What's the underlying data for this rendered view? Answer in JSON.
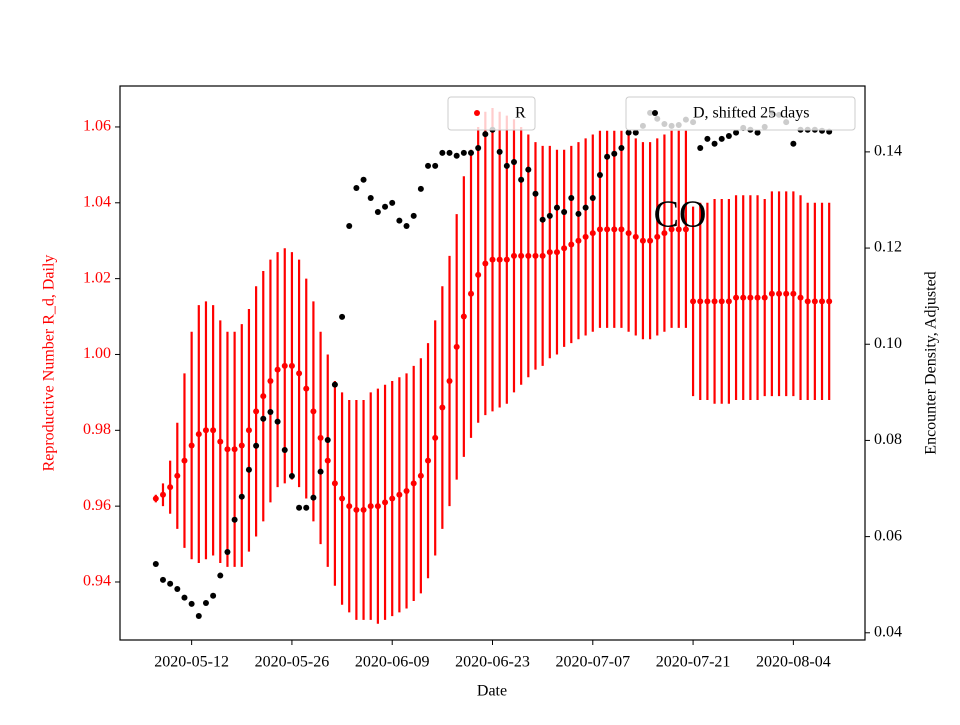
{
  "chart_data": {
    "type": "scatter",
    "x_label": "Date",
    "y_label": "Reproductive Number R_d, Daily",
    "y2_label": "Encounter Density, Adjusted",
    "annotation": "CO",
    "xlim": [
      "2020-05-02",
      "2020-08-14"
    ],
    "xticks": [
      "2020-05-12",
      "2020-05-26",
      "2020-06-09",
      "2020-06-23",
      "2020-07-07",
      "2020-07-21",
      "2020-08-04"
    ],
    "ylim": [
      0.9247,
      1.0708
    ],
    "yticks": [
      0.94,
      0.96,
      0.98,
      {
        "value": 1,
        "label": "1.00"
      },
      1.02,
      1.04,
      1.06
    ],
    "y2lim": [
      0.0385,
      0.1537
    ],
    "y2ticks": [
      0.04,
      0.06,
      0.08,
      {
        "value": 0.1,
        "label": "0.10"
      },
      0.12,
      0.14
    ],
    "x": [
      "2020-05-07",
      "2020-05-08",
      "2020-05-09",
      "2020-05-10",
      "2020-05-11",
      "2020-05-12",
      "2020-05-13",
      "2020-05-14",
      "2020-05-15",
      "2020-05-16",
      "2020-05-17",
      "2020-05-18",
      "2020-05-19",
      "2020-05-20",
      "2020-05-21",
      "2020-05-22",
      "2020-05-23",
      "2020-05-24",
      "2020-05-25",
      "2020-05-26",
      "2020-05-27",
      "2020-05-28",
      "2020-05-29",
      "2020-05-30",
      "2020-05-31",
      "2020-06-01",
      "2020-06-02",
      "2020-06-03",
      "2020-06-04",
      "2020-06-05",
      "2020-06-06",
      "2020-06-07",
      "2020-06-08",
      "2020-06-09",
      "2020-06-10",
      "2020-06-11",
      "2020-06-12",
      "2020-06-13",
      "2020-06-14",
      "2020-06-15",
      "2020-06-16",
      "2020-06-17",
      "2020-06-18",
      "2020-06-19",
      "2020-06-20",
      "2020-06-21",
      "2020-06-22",
      "2020-06-23",
      "2020-06-24",
      "2020-06-25",
      "2020-06-26",
      "2020-06-27",
      "2020-06-28",
      "2020-06-29",
      "2020-06-30",
      "2020-07-01",
      "2020-07-02",
      "2020-07-03",
      "2020-07-04",
      "2020-07-05",
      "2020-07-06",
      "2020-07-07",
      "2020-07-08",
      "2020-07-09",
      "2020-07-10",
      "2020-07-11",
      "2020-07-12",
      "2020-07-13",
      "2020-07-14",
      "2020-07-15",
      "2020-07-16",
      "2020-07-17",
      "2020-07-18",
      "2020-07-19",
      "2020-07-20",
      "2020-07-21",
      "2020-07-22",
      "2020-07-23",
      "2020-07-24",
      "2020-07-25",
      "2020-07-26",
      "2020-07-27",
      "2020-07-28",
      "2020-07-29",
      "2020-07-30",
      "2020-07-31",
      "2020-08-01",
      "2020-08-02",
      "2020-08-03",
      "2020-08-04",
      "2020-08-05",
      "2020-08-06",
      "2020-08-07",
      "2020-08-08",
      "2020-08-09"
    ],
    "legend": "upper right",
    "series": [
      {
        "name": "R",
        "color": "#ff0000",
        "values": [
          0.962,
          0.963,
          0.965,
          0.968,
          0.972,
          0.976,
          0.979,
          0.98,
          0.98,
          0.977,
          0.975,
          0.975,
          0.976,
          0.98,
          0.985,
          0.989,
          0.993,
          0.996,
          0.997,
          0.997,
          0.995,
          0.991,
          0.985,
          0.978,
          0.972,
          0.966,
          0.962,
          0.96,
          0.959,
          0.959,
          0.96,
          0.96,
          0.961,
          0.962,
          0.963,
          0.964,
          0.966,
          0.968,
          0.972,
          0.978,
          0.986,
          0.993,
          1.002,
          1.01,
          1.016,
          1.021,
          1.024,
          1.025,
          1.025,
          1.025,
          1.026,
          1.026,
          1.026,
          1.026,
          1.026,
          1.027,
          1.027,
          1.028,
          1.029,
          1.03,
          1.031,
          1.032,
          1.033,
          1.033,
          1.033,
          1.033,
          1.032,
          1.031,
          1.03,
          1.03,
          1.031,
          1.032,
          1.033,
          1.033,
          1.033,
          1.014,
          1.014,
          1.014,
          1.014,
          1.014,
          1.014,
          1.015,
          1.015,
          1.015,
          1.015,
          1.015,
          1.016,
          1.016,
          1.016,
          1.016,
          1.015,
          1.014,
          1.014,
          1.014,
          1.014
        ],
        "errors": [
          0.001,
          0.003,
          0.007,
          0.014,
          0.023,
          0.03,
          0.034,
          0.034,
          0.033,
          0.032,
          0.031,
          0.031,
          0.032,
          0.032,
          0.033,
          0.033,
          0.032,
          0.031,
          0.031,
          0.03,
          0.03,
          0.029,
          0.029,
          0.028,
          0.028,
          0.027,
          0.028,
          0.028,
          0.029,
          0.029,
          0.03,
          0.031,
          0.031,
          0.031,
          0.031,
          0.031,
          0.031,
          0.031,
          0.031,
          0.031,
          0.032,
          0.033,
          0.035,
          0.037,
          0.038,
          0.039,
          0.04,
          0.04,
          0.039,
          0.038,
          0.036,
          0.034,
          0.032,
          0.03,
          0.029,
          0.028,
          0.027,
          0.026,
          0.026,
          0.026,
          0.026,
          0.026,
          0.026,
          0.026,
          0.026,
          0.026,
          0.026,
          0.026,
          0.026,
          0.026,
          0.026,
          0.026,
          0.026,
          0.026,
          0.026,
          0.025,
          0.026,
          0.026,
          0.027,
          0.027,
          0.027,
          0.027,
          0.027,
          0.027,
          0.027,
          0.026,
          0.027,
          0.027,
          0.027,
          0.027,
          0.027,
          0.026,
          0.026,
          0.026,
          0.026
        ]
      },
      {
        "name": "D, shifted 25 days",
        "color": "#000000",
        "axis": "y2",
        "values": [
          0.0543,
          0.051,
          0.0502,
          0.0491,
          0.0473,
          0.046,
          0.0435,
          0.0462,
          0.0477,
          0.0519,
          0.0568,
          0.0635,
          0.0683,
          0.0739,
          0.0789,
          0.0845,
          0.0859,
          0.0839,
          0.078,
          0.0726,
          0.066,
          0.066,
          0.0681,
          0.0735,
          0.0801,
          0.0916,
          0.1057,
          0.1246,
          0.1325,
          0.1342,
          0.1304,
          0.1275,
          0.1286,
          0.1294,
          0.1257,
          0.1246,
          0.1267,
          0.1323,
          0.1371,
          0.1371,
          0.1398,
          0.1398,
          0.1392,
          0.1398,
          0.1398,
          0.1408,
          0.1437,
          0.1446,
          0.14,
          0.1371,
          0.1379,
          0.1342,
          0.1363,
          0.1313,
          0.1259,
          0.1267,
          0.1284,
          0.1275,
          0.1304,
          0.1271,
          0.1284,
          0.1304,
          0.1352,
          0.139,
          0.1396,
          0.1408,
          0.144,
          0.144,
          0.1454,
          0.1481,
          0.1469,
          0.1458,
          0.1454,
          0.1456,
          0.1467,
          0.1462,
          0.1408,
          0.1427,
          0.1417,
          0.1427,
          0.1433,
          0.144,
          0.145,
          0.1446,
          0.144,
          0.1452,
          0.1481,
          0.1477,
          0.1462,
          0.1417,
          0.1446,
          0.1446,
          0.1446,
          0.1444,
          0.1442
        ]
      }
    ]
  }
}
